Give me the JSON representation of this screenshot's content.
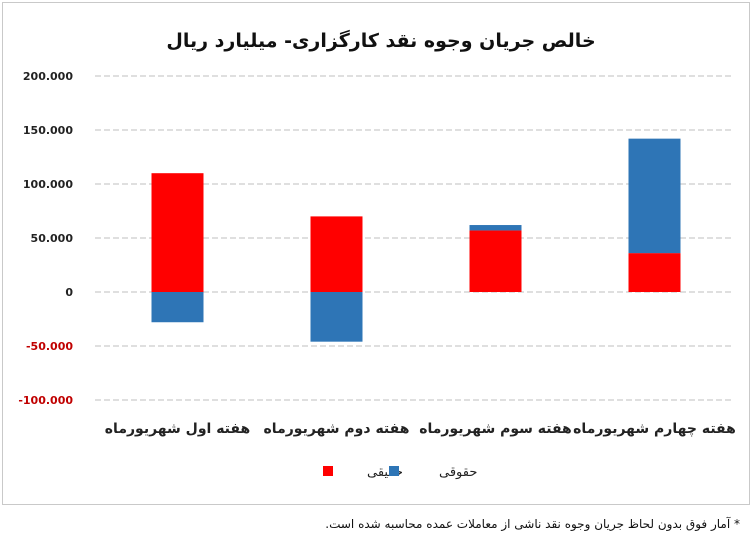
{
  "chart_data": {
    "type": "bar",
    "stacked": true,
    "title": "خالص جریان وجوه نقد کارگزاری- میلیارد ریال",
    "categories": [
      "هفته اول شهریورماه",
      "هفته دوم شهریورماه",
      "هفته سوم شهریورماه",
      "هفته چهارم شهریورماه"
    ],
    "series": [
      {
        "name": "حقیقی",
        "color": "#ff0000",
        "values": [
          110000,
          70000,
          57000,
          36000
        ]
      },
      {
        "name": "حقوقی",
        "color": "#2e75b6",
        "values": [
          -28000,
          -46000,
          5000,
          106000
        ]
      }
    ],
    "yticks": [
      "200.000",
      "150.000",
      "100.000",
      "50.000",
      "0",
      "-50.000",
      "-100.000"
    ],
    "ylim": [
      -100000,
      200000
    ],
    "grid": true,
    "legend": "bottom"
  },
  "footnote": "* آمار فوق بدون لحاظ جریان وجوه نقد ناشی از معاملات عمده محاسبه شده است."
}
